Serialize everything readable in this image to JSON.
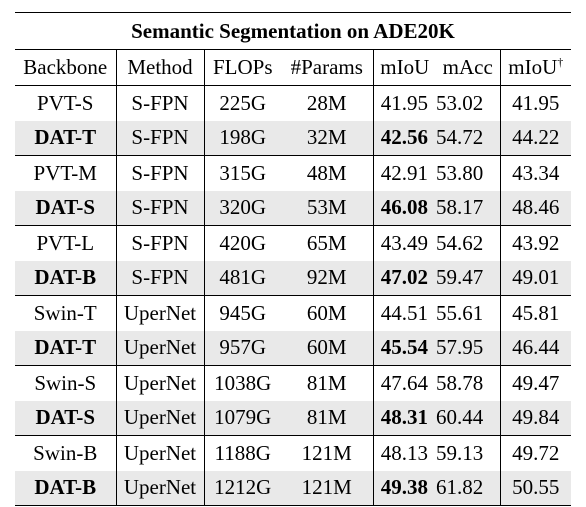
{
  "title": "Semantic Segmentation on ADE20K",
  "headers": {
    "backbone": "Backbone",
    "method": "Method",
    "flops": "FLOPs",
    "params": "#Params",
    "miou": "mIoU",
    "macc": "mAcc",
    "miou_ms": "mIoU",
    "miou_ms_mark": "†"
  },
  "rows": [
    {
      "backbone": "PVT-S",
      "method": "S-FPN",
      "flops": "225G",
      "params": "28M",
      "miou": "41.95",
      "macc": "53.02",
      "miou_ms": "41.95",
      "ours": false
    },
    {
      "backbone": "DAT-T",
      "method": "S-FPN",
      "flops": "198G",
      "params": "32M",
      "miou": "42.56",
      "macc": "54.72",
      "miou_ms": "44.22",
      "ours": true
    },
    {
      "backbone": "PVT-M",
      "method": "S-FPN",
      "flops": "315G",
      "params": "48M",
      "miou": "42.91",
      "macc": "53.80",
      "miou_ms": "43.34",
      "ours": false
    },
    {
      "backbone": "DAT-S",
      "method": "S-FPN",
      "flops": "320G",
      "params": "53M",
      "miou": "46.08",
      "macc": "58.17",
      "miou_ms": "48.46",
      "ours": true
    },
    {
      "backbone": "PVT-L",
      "method": "S-FPN",
      "flops": "420G",
      "params": "65M",
      "miou": "43.49",
      "macc": "54.62",
      "miou_ms": "43.92",
      "ours": false
    },
    {
      "backbone": "DAT-B",
      "method": "S-FPN",
      "flops": "481G",
      "params": "92M",
      "miou": "47.02",
      "macc": "59.47",
      "miou_ms": "49.01",
      "ours": true
    },
    {
      "backbone": "Swin-T",
      "method": "UperNet",
      "flops": "945G",
      "params": "60M",
      "miou": "44.51",
      "macc": "55.61",
      "miou_ms": "45.81",
      "ours": false
    },
    {
      "backbone": "DAT-T",
      "method": "UperNet",
      "flops": "957G",
      "params": "60M",
      "miou": "45.54",
      "macc": "57.95",
      "miou_ms": "46.44",
      "ours": true
    },
    {
      "backbone": "Swin-S",
      "method": "UperNet",
      "flops": "1038G",
      "params": "81M",
      "miou": "47.64",
      "macc": "58.78",
      "miou_ms": "49.47",
      "ours": false
    },
    {
      "backbone": "DAT-S",
      "method": "UperNet",
      "flops": "1079G",
      "params": "81M",
      "miou": "48.31",
      "macc": "60.44",
      "miou_ms": "49.84",
      "ours": true
    },
    {
      "backbone": "Swin-B",
      "method": "UperNet",
      "flops": "1188G",
      "params": "121M",
      "miou": "48.13",
      "macc": "59.13",
      "miou_ms": "49.72",
      "ours": false
    },
    {
      "backbone": "DAT-B",
      "method": "UperNet",
      "flops": "1212G",
      "params": "121M",
      "miou": "49.38",
      "macc": "61.82",
      "miou_ms": "50.55",
      "ours": true
    }
  ]
}
